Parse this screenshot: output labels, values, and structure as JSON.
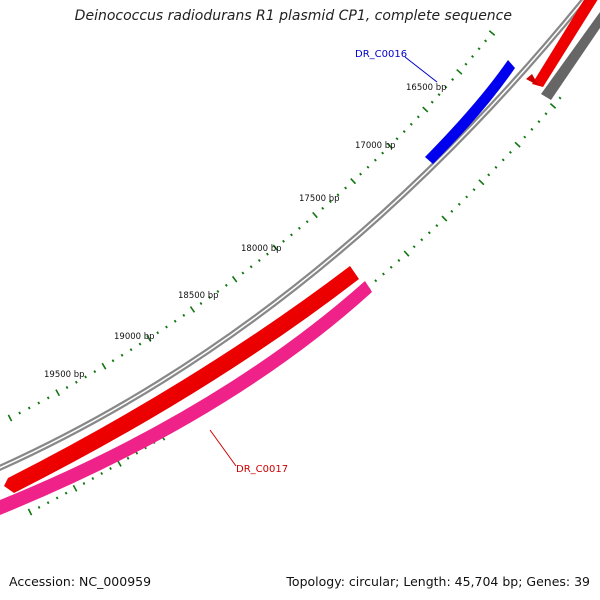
{
  "title": "Deinococcus radiodurans R1 plasmid CP1, complete sequence",
  "accession": "Accession: NC_000959",
  "summary": "Topology: circular; Length: 45,704 bp; Genes: 39",
  "ticks": [
    {
      "label": "16500 bp",
      "bp": 16500
    },
    {
      "label": "17000 bp",
      "bp": 17000
    },
    {
      "label": "17500 bp",
      "bp": 17500
    },
    {
      "label": "18000 bp",
      "bp": 18000
    },
    {
      "label": "18500 bp",
      "bp": 18500
    },
    {
      "label": "19000 bp",
      "bp": 19000
    },
    {
      "label": "19500 bp",
      "bp": 19500
    }
  ],
  "genes": [
    {
      "name": "DR_C0016",
      "color": "#0000cc",
      "strand": "plus"
    },
    {
      "name": "DR_C0017",
      "color": "#cc0000",
      "strand": "minus"
    }
  ],
  "colors": {
    "backbone": "#888888",
    "cds_red": "#ee0000",
    "cds_pink": "#ee2288",
    "cds_blue": "#0000ee",
    "cds_gray": "#666666",
    "tick_green": "#117711"
  }
}
